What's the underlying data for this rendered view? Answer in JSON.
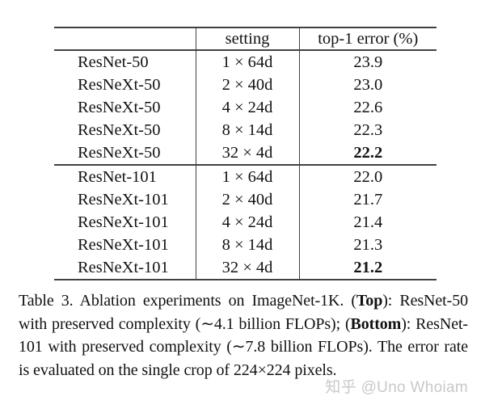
{
  "table": {
    "headers": [
      "",
      "setting",
      "top-1 error (%)"
    ],
    "rows": [
      {
        "model": "ResNet-50",
        "setting": "1 × 64d",
        "error": "23.9",
        "bold": false
      },
      {
        "model": "ResNeXt-50",
        "setting": "2 × 40d",
        "error": "23.0",
        "bold": false
      },
      {
        "model": "ResNeXt-50",
        "setting": "4 × 24d",
        "error": "22.6",
        "bold": false
      },
      {
        "model": "ResNeXt-50",
        "setting": "8 × 14d",
        "error": "22.3",
        "bold": false
      },
      {
        "model": "ResNeXt-50",
        "setting": "32 × 4d",
        "error": "22.2",
        "bold": true
      },
      {
        "model": "ResNet-101",
        "setting": "1 × 64d",
        "error": "22.0",
        "bold": false
      },
      {
        "model": "ResNeXt-101",
        "setting": "2 × 40d",
        "error": "21.7",
        "bold": false
      },
      {
        "model": "ResNeXt-101",
        "setting": "4 × 24d",
        "error": "21.4",
        "bold": false
      },
      {
        "model": "ResNeXt-101",
        "setting": "8 × 14d",
        "error": "21.3",
        "bold": false
      },
      {
        "model": "ResNeXt-101",
        "setting": "32 × 4d",
        "error": "21.2",
        "bold": true
      }
    ]
  },
  "caption": {
    "segments": [
      {
        "text": "Table 3. Ablation experiments on ImageNet-1K. (",
        "bold": false
      },
      {
        "text": "Top",
        "bold": true
      },
      {
        "text": "): ResNet-50 with preserved complexity (∼4.1 billion FLOPs); (",
        "bold": false
      },
      {
        "text": "Bottom",
        "bold": true
      },
      {
        "text": "): ResNet-101 with preserved complexity (∼7.8 billion FLOPs). The error rate is evaluated on the single crop of 224×224 pixels.",
        "bold": false
      }
    ]
  },
  "watermark": {
    "text": "知乎 @Uno Whoiam",
    "color": "#c9c9c9"
  }
}
